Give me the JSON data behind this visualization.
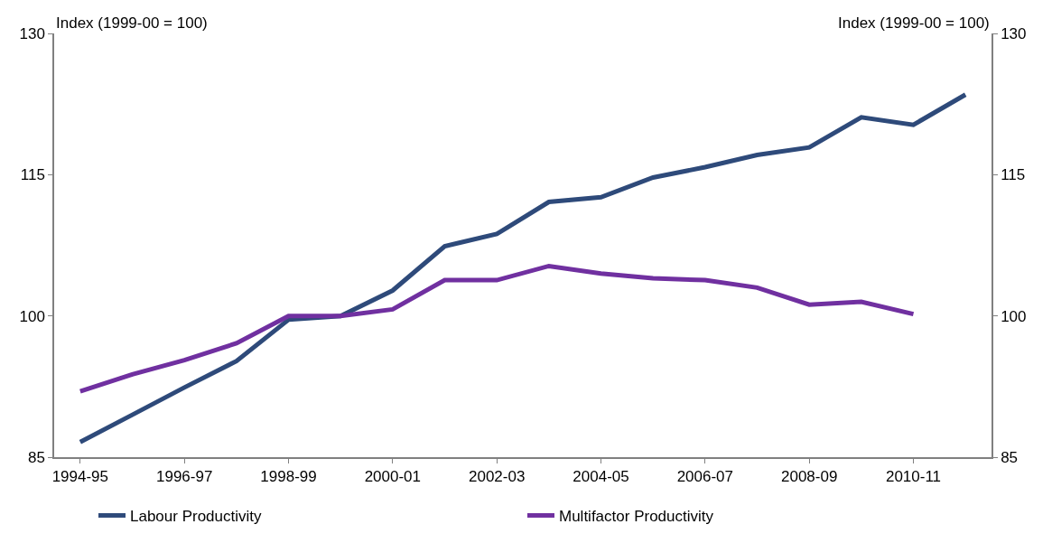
{
  "chart_data": {
    "type": "line",
    "ylabel": "Index (1999-00 = 100)",
    "y2label": "Index (1999-00 = 100)",
    "categories": [
      "1994-95",
      null,
      "1996-97",
      null,
      "1998-99",
      null,
      "2000-01",
      null,
      "2002-03",
      null,
      "2004-05",
      null,
      "2006-07",
      null,
      "2008-09",
      null,
      "2010-11",
      null
    ],
    "series": [
      {
        "name": "Labour Productivity",
        "color": "#2e4a7a",
        "values": [
          86.6,
          89.5,
          92.4,
          95.2,
          99.6,
          100,
          102.7,
          107.4,
          108.7,
          112.1,
          112.6,
          114.7,
          115.8,
          117.1,
          117.9,
          121.1,
          120.3,
          123.5
        ]
      },
      {
        "name": "Multifactor Productivity",
        "color": "#7030a0",
        "values": [
          92.0,
          93.8,
          95.3,
          97.1,
          100,
          100,
          100.7,
          103.8,
          103.8,
          105.3,
          104.5,
          104.0,
          103.8,
          103.0,
          101.2,
          101.5,
          100.2,
          null
        ]
      }
    ],
    "ylim": [
      85,
      130
    ],
    "yticks": [
      85,
      100,
      115,
      130
    ],
    "y2lim": [
      85,
      130
    ],
    "y2ticks": [
      85,
      100,
      115,
      130
    ],
    "legend": "bottom",
    "marker": "none",
    "line_style": "solid"
  }
}
